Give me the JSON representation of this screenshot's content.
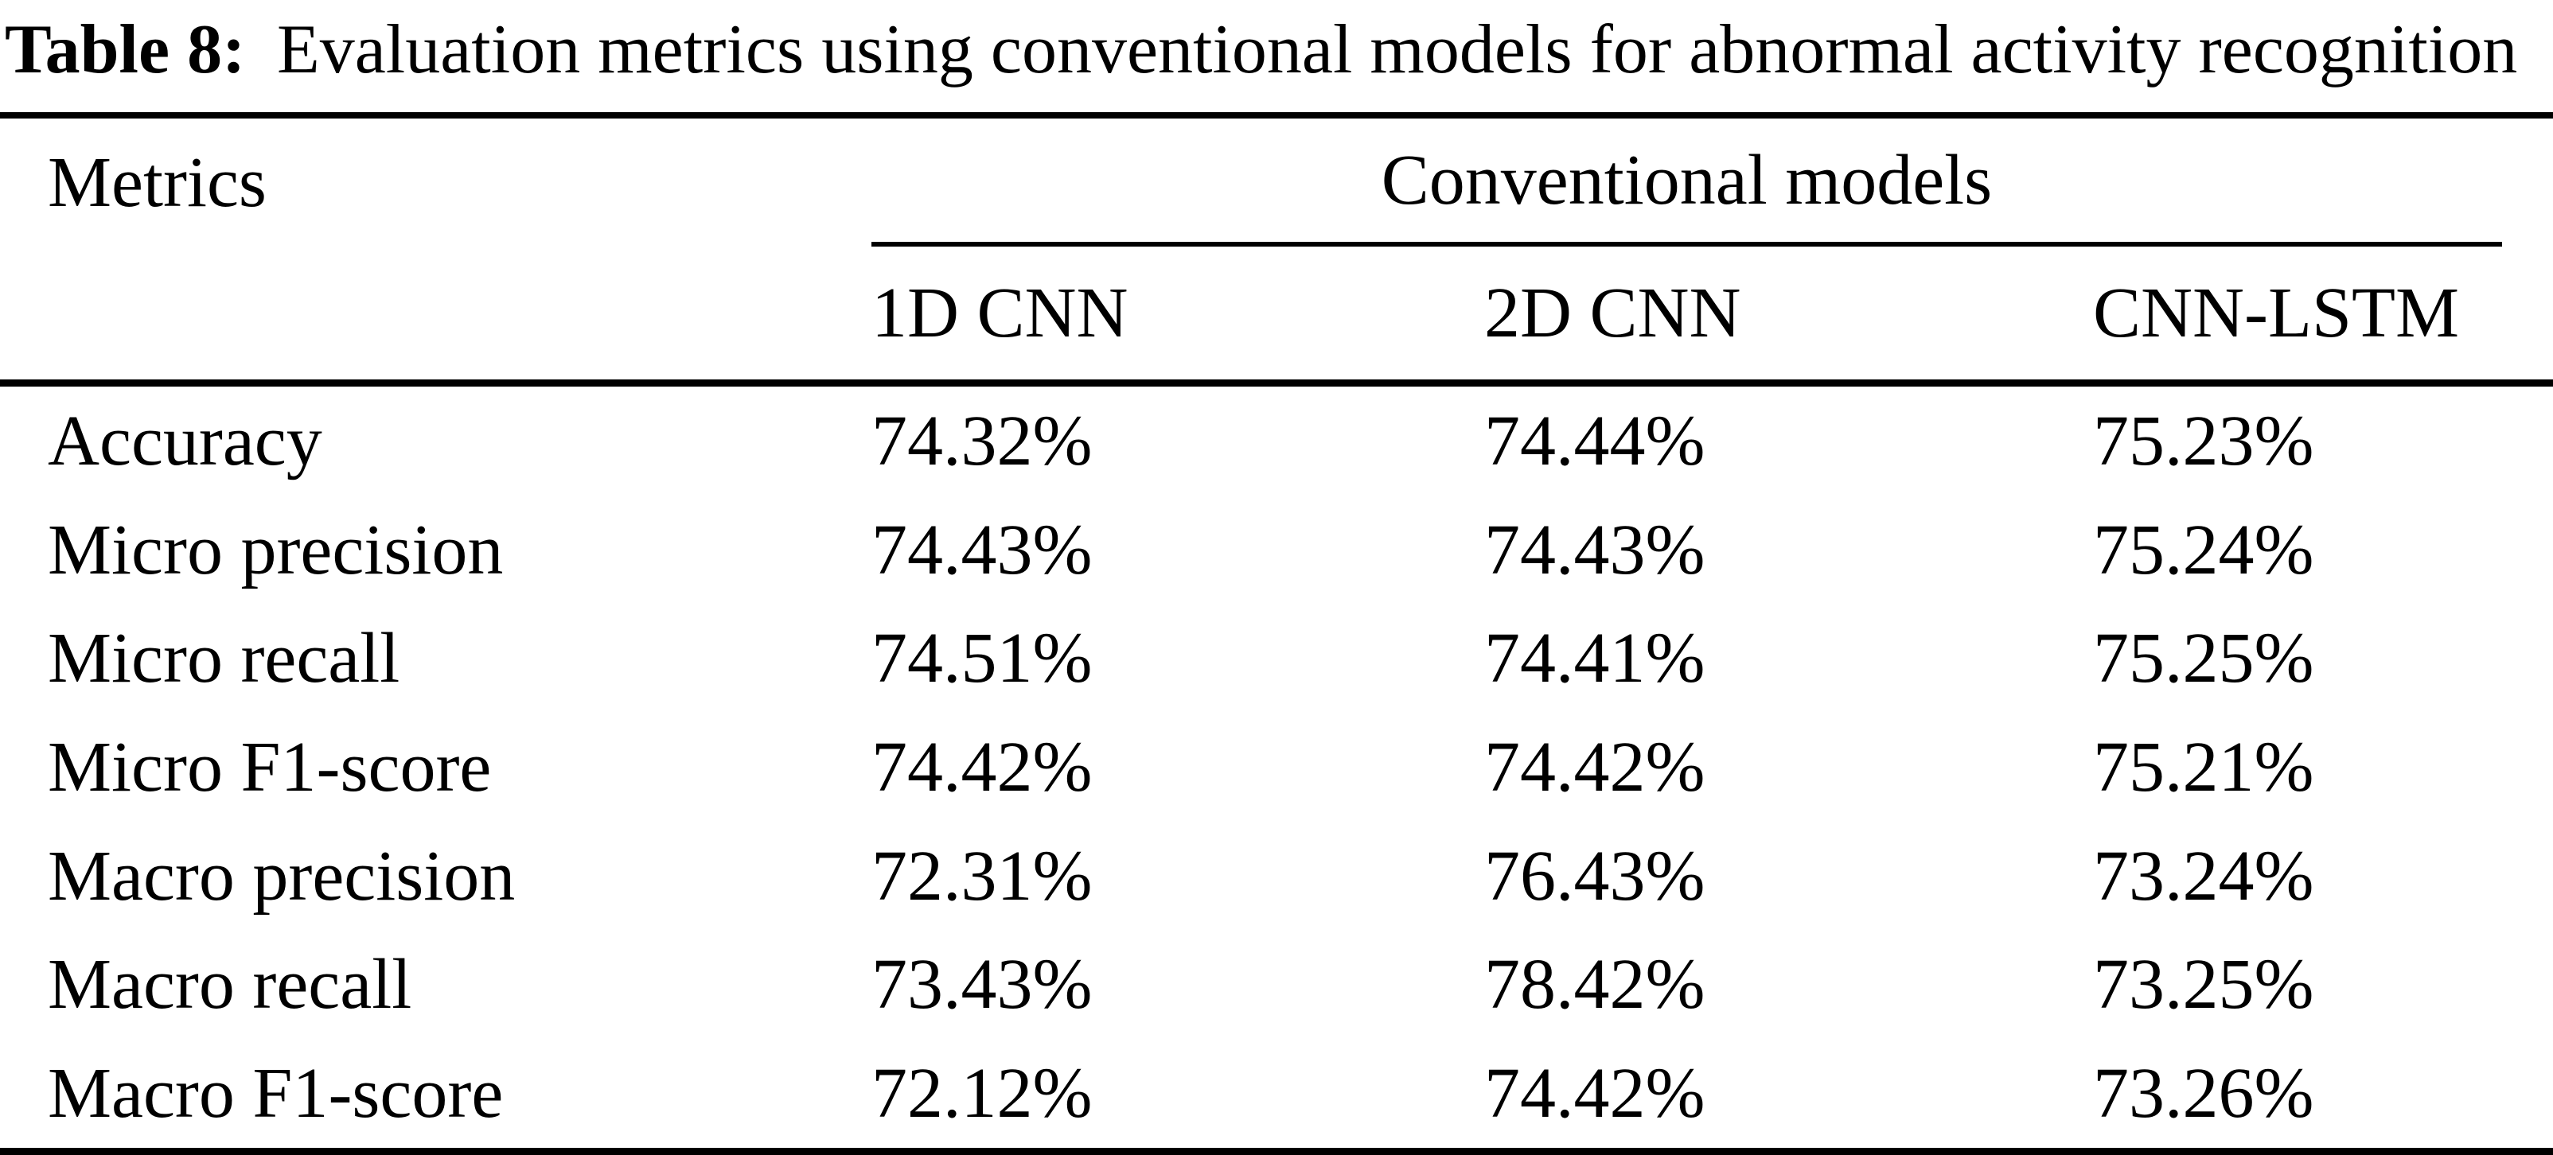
{
  "caption": {
    "label": "Table 8:",
    "text": "Evaluation metrics using conventional models for abnormal activity recognition"
  },
  "table": {
    "row_label_header": "Metrics",
    "group_header": "Conventional models",
    "columns": [
      "1D CNN",
      "2D CNN",
      "CNN-LSTM"
    ],
    "rows": [
      {
        "metric": "Accuracy",
        "values": [
          "74.32%",
          "74.44%",
          "75.23%"
        ]
      },
      {
        "metric": "Micro precision",
        "values": [
          "74.43%",
          "74.43%",
          "75.24%"
        ]
      },
      {
        "metric": "Micro recall",
        "values": [
          "74.51%",
          "74.41%",
          "75.25%"
        ]
      },
      {
        "metric": "Micro F1-score",
        "values": [
          "74.42%",
          "74.42%",
          "75.21%"
        ]
      },
      {
        "metric": "Macro precision",
        "values": [
          "72.31%",
          "76.43%",
          "73.24%"
        ]
      },
      {
        "metric": "Macro recall",
        "values": [
          "73.43%",
          "78.42%",
          "73.25%"
        ]
      },
      {
        "metric": "Macro F1-score",
        "values": [
          "72.12%",
          "74.42%",
          "73.26%"
        ]
      }
    ]
  },
  "colors": {
    "background": "#ffffff",
    "text": "#000000",
    "rule": "#000000"
  }
}
